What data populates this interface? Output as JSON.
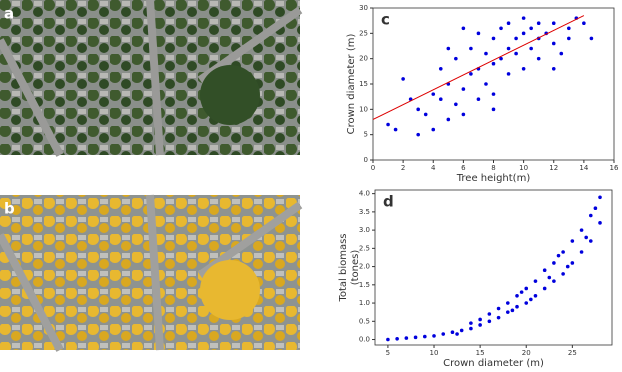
{
  "images": [
    {
      "label": "a"
    },
    {
      "label": "b"
    }
  ],
  "chart_data": [
    {
      "type": "scatter",
      "label": "c",
      "xlabel": "Tree height(m)",
      "ylabel": "Crown diameter (m)",
      "color": "#0000dd",
      "x": [
        1,
        1.5,
        2,
        2.5,
        3,
        3,
        3.5,
        4,
        4,
        4.5,
        4.5,
        5,
        5,
        5.5,
        5.5,
        6,
        6,
        6.5,
        6.5,
        7,
        7,
        7,
        7.5,
        7.5,
        8,
        8,
        8,
        8.5,
        8.5,
        9,
        9,
        9,
        9.5,
        9.5,
        10,
        10,
        10,
        10.5,
        10.5,
        11,
        11,
        11,
        11.5,
        12,
        12,
        12.5,
        13,
        13.5,
        14,
        14.5,
        13,
        12,
        6,
        5,
        8
      ],
      "y": [
        7,
        6,
        16,
        12,
        10,
        5,
        9,
        13,
        6,
        12,
        18,
        8,
        15,
        11,
        20,
        14,
        9,
        17,
        22,
        12,
        18,
        25,
        15,
        21,
        19,
        24,
        13,
        20,
        26,
        17,
        22,
        27,
        21,
        24,
        18,
        25,
        28,
        22,
        26,
        20,
        24,
        27,
        25,
        23,
        27,
        21,
        26,
        28,
        27,
        24,
        24,
        18,
        26,
        22,
        10
      ],
      "fit": {
        "x": [
          0,
          14
        ],
        "y": [
          8,
          28.5
        ],
        "color": "#dd0000"
      },
      "xlim": [
        0,
        16
      ],
      "xticks": [
        0,
        2,
        4,
        6,
        8,
        10,
        12,
        14,
        16
      ],
      "ylim": [
        0,
        30
      ],
      "yticks": [
        0,
        5,
        10,
        15,
        20,
        25,
        30
      ]
    },
    {
      "type": "scatter",
      "label": "d",
      "xlabel": "Crown diameter (m)",
      "ylabel": [
        "Total biomass",
        "(tones)"
      ],
      "color": "#0000dd",
      "x": [
        5,
        6,
        7,
        8,
        9,
        10,
        11,
        12,
        13,
        14,
        15,
        15,
        16,
        16,
        17,
        17,
        18,
        18,
        19,
        19,
        20,
        20,
        21,
        21,
        22,
        22,
        23,
        23,
        24,
        24,
        25,
        25,
        26,
        26,
        27,
        27,
        28,
        28,
        27.5,
        22.5,
        20.5,
        18.5,
        19.5,
        23.5,
        26.5,
        14,
        12.5,
        24.5
      ],
      "y": [
        0.0,
        0.02,
        0.04,
        0.06,
        0.08,
        0.1,
        0.15,
        0.2,
        0.25,
        0.3,
        0.4,
        0.55,
        0.5,
        0.7,
        0.6,
        0.85,
        0.75,
        1.0,
        0.9,
        1.2,
        1.0,
        1.4,
        1.2,
        1.6,
        1.4,
        1.9,
        1.6,
        2.1,
        1.8,
        2.4,
        2.1,
        2.7,
        2.4,
        3.0,
        2.7,
        3.4,
        3.2,
        3.9,
        3.6,
        1.7,
        1.1,
        0.8,
        1.3,
        2.3,
        2.8,
        0.45,
        0.15,
        2.0
      ],
      "xlim": [
        3.6,
        29.3
      ],
      "xticks": [
        5,
        10,
        15,
        20,
        25
      ],
      "ylim": [
        -0.15,
        4.1
      ],
      "yticks": [
        {
          "value": 0,
          "label": "0.0"
        },
        {
          "value": 0.5,
          "label": "0.5"
        },
        {
          "value": 1,
          "label": "1.0"
        },
        {
          "value": 1.5,
          "label": "1.5"
        },
        {
          "value": 2,
          "label": "2.0"
        },
        {
          "value": 2.5,
          "label": "2.5"
        },
        {
          "value": 3,
          "label": "3.0"
        },
        {
          "value": 3.5,
          "label": "3.5"
        },
        {
          "value": 4,
          "label": "4.0"
        }
      ]
    }
  ]
}
